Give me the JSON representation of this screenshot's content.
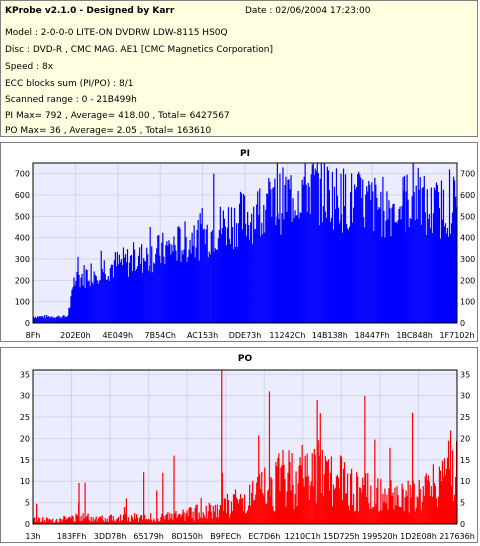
{
  "header": {
    "title": "KProbe v2.1.0 - Designed by Karr",
    "date": "Date : 02/06/2004 17:23:00",
    "model": "Model : 2-0-0-0 LITE-ON DVDRW LDW-8115   HS0Q",
    "disc": "Disc : DVD-R , CMC MAG. AE1 [CMC Magnetics Corporation]",
    "speed": "Speed : 8x",
    "ecc": "ECC blocks sum (PI/PO) : 8/1",
    "range": "Scanned range : 0 - 21B499h",
    "pi_stats": "PI Max= 792 , Average= 418.00 , Total= 6427567",
    "po_stats": "PO Max= 36 , Average= 2.05 , Total= 163610"
  },
  "colors": {
    "pi": "#0000ff",
    "po": "#ff0000",
    "plot_bg": "#ececff",
    "grid": "#d4d4ea"
  },
  "chart_data": [
    {
      "type": "area",
      "title": "PI",
      "ylim": [
        0,
        750
      ],
      "yticks": [
        0,
        100,
        200,
        300,
        400,
        500,
        600,
        700
      ],
      "xlabels": [
        "8Fh",
        "202E0h",
        "4E049h",
        "7B54Ch",
        "AC153h",
        "DDE73h",
        "11242Ch",
        "14B138h",
        "18447Fh",
        "1BC848h",
        "1F7102h"
      ],
      "grid": true,
      "max": 792,
      "x": [
        0,
        0.03,
        0.06,
        0.08,
        0.1,
        0.13,
        0.16,
        0.19,
        0.22,
        0.25,
        0.28,
        0.31,
        0.34,
        0.37,
        0.4,
        0.43,
        0.46,
        0.49,
        0.52,
        0.55,
        0.58,
        0.61,
        0.63,
        0.64,
        0.66,
        0.69,
        0.72,
        0.75,
        0.78,
        0.8,
        0.82,
        0.84,
        0.86,
        0.88,
        0.9,
        0.92,
        0.93,
        0.95,
        0.97,
        1.0
      ],
      "values": [
        30,
        30,
        30,
        30,
        210,
        230,
        260,
        270,
        285,
        300,
        320,
        340,
        365,
        385,
        410,
        435,
        470,
        490,
        510,
        540,
        565,
        600,
        630,
        650,
        640,
        620,
        590,
        570,
        560,
        555,
        545,
        540,
        550,
        560,
        600,
        570,
        520,
        530,
        545,
        565
      ],
      "peaks": [
        80,
        450,
        700,
        792,
        700,
        690
      ]
    },
    {
      "type": "bar",
      "title": "PO",
      "ylim": [
        0,
        36
      ],
      "yticks": [
        0,
        5,
        10,
        15,
        20,
        25,
        30,
        35
      ],
      "xlabels": [
        "13h",
        "183FFh",
        "3DD78h",
        "65179h",
        "8D150h",
        "B9FECh",
        "EC7D6h",
        "1210C1h",
        "15D725h",
        "199520h",
        "1D2E08h",
        "217636h"
      ],
      "grid": true,
      "max": 36,
      "x": [
        0,
        0.05,
        0.1,
        0.15,
        0.2,
        0.25,
        0.3,
        0.35,
        0.4,
        0.45,
        0.5,
        0.55,
        0.6,
        0.65,
        0.7,
        0.75,
        0.8,
        0.85,
        0.9,
        0.95,
        1.0
      ],
      "values": [
        1,
        1,
        1.5,
        1.5,
        1.5,
        1.5,
        1.5,
        2,
        3,
        4,
        5,
        8,
        11,
        12,
        11,
        8,
        7,
        6,
        6,
        9,
        18
      ],
      "peaks": [
        5,
        6,
        16,
        36,
        31,
        29,
        30,
        26
      ]
    }
  ]
}
